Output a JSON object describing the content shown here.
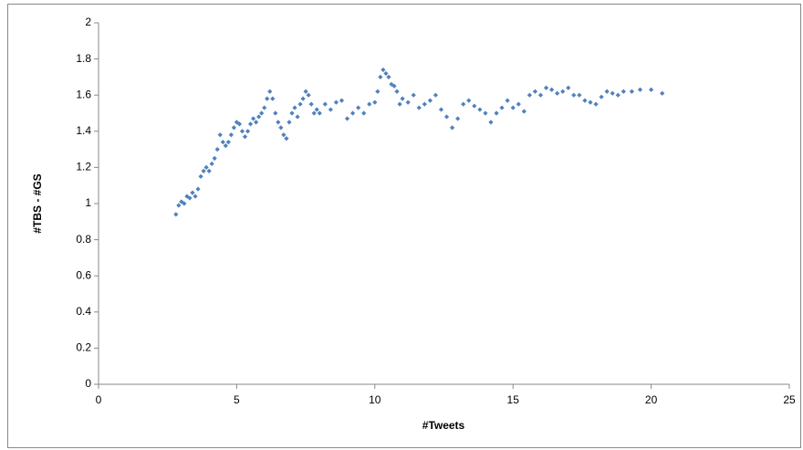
{
  "chart_data": {
    "type": "scatter",
    "x_label": "#Tweets",
    "y_label": "#TBS - #GS",
    "xlim": [
      0,
      25
    ],
    "xticks": [
      0,
      5,
      10,
      15,
      20,
      25
    ],
    "ylim": [
      0,
      2
    ],
    "yticks": [
      0,
      0.2,
      0.4,
      0.6,
      0.8,
      1,
      1.2,
      1.4,
      1.6,
      1.8,
      2
    ],
    "grid": false,
    "color": "#4f81bd",
    "x": [
      2.8,
      2.9,
      3.0,
      3.1,
      3.2,
      3.3,
      3.4,
      3.5,
      3.6,
      3.7,
      3.8,
      3.9,
      4.0,
      4.1,
      4.2,
      4.3,
      4.4,
      4.5,
      4.6,
      4.7,
      4.8,
      4.9,
      5.0,
      5.1,
      5.2,
      5.3,
      5.4,
      5.5,
      5.6,
      5.7,
      5.8,
      5.9,
      6.0,
      6.1,
      6.2,
      6.3,
      6.4,
      6.5,
      6.6,
      6.7,
      6.8,
      6.9,
      7.0,
      7.1,
      7.2,
      7.3,
      7.4,
      7.5,
      7.6,
      7.7,
      7.8,
      7.9,
      8.0,
      8.2,
      8.4,
      8.6,
      8.8,
      9.0,
      9.2,
      9.4,
      9.6,
      9.8,
      10.0,
      10.1,
      10.2,
      10.3,
      10.4,
      10.5,
      10.6,
      10.7,
      10.8,
      10.9,
      11.0,
      11.2,
      11.4,
      11.6,
      11.8,
      12.0,
      12.2,
      12.4,
      12.6,
      12.8,
      13.0,
      13.2,
      13.4,
      13.6,
      13.8,
      14.0,
      14.2,
      14.4,
      14.6,
      14.8,
      15.0,
      15.2,
      15.4,
      15.6,
      15.8,
      16.0,
      16.2,
      16.4,
      16.6,
      16.8,
      17.0,
      17.2,
      17.4,
      17.6,
      17.8,
      18.0,
      18.2,
      18.4,
      18.6,
      18.8,
      19.0,
      19.3,
      19.6,
      20.0,
      20.4
    ],
    "values": [
      0.94,
      0.99,
      1.01,
      1.0,
      1.04,
      1.03,
      1.06,
      1.04,
      1.08,
      1.15,
      1.18,
      1.2,
      1.18,
      1.22,
      1.25,
      1.3,
      1.38,
      1.34,
      1.32,
      1.34,
      1.38,
      1.42,
      1.45,
      1.44,
      1.4,
      1.37,
      1.4,
      1.44,
      1.47,
      1.45,
      1.48,
      1.5,
      1.53,
      1.58,
      1.62,
      1.58,
      1.5,
      1.45,
      1.42,
      1.38,
      1.36,
      1.45,
      1.5,
      1.53,
      1.48,
      1.55,
      1.58,
      1.62,
      1.6,
      1.55,
      1.5,
      1.52,
      1.5,
      1.55,
      1.52,
      1.56,
      1.57,
      1.47,
      1.5,
      1.53,
      1.5,
      1.55,
      1.56,
      1.62,
      1.7,
      1.74,
      1.72,
      1.7,
      1.66,
      1.65,
      1.62,
      1.55,
      1.58,
      1.56,
      1.6,
      1.53,
      1.55,
      1.57,
      1.6,
      1.52,
      1.48,
      1.42,
      1.47,
      1.55,
      1.57,
      1.54,
      1.52,
      1.5,
      1.45,
      1.5,
      1.53,
      1.57,
      1.53,
      1.55,
      1.51,
      1.6,
      1.62,
      1.6,
      1.64,
      1.63,
      1.61,
      1.62,
      1.64,
      1.6,
      1.6,
      1.57,
      1.56,
      1.55,
      1.59,
      1.62,
      1.61,
      1.6,
      1.62,
      1.62,
      1.63,
      1.63,
      1.61
    ]
  }
}
